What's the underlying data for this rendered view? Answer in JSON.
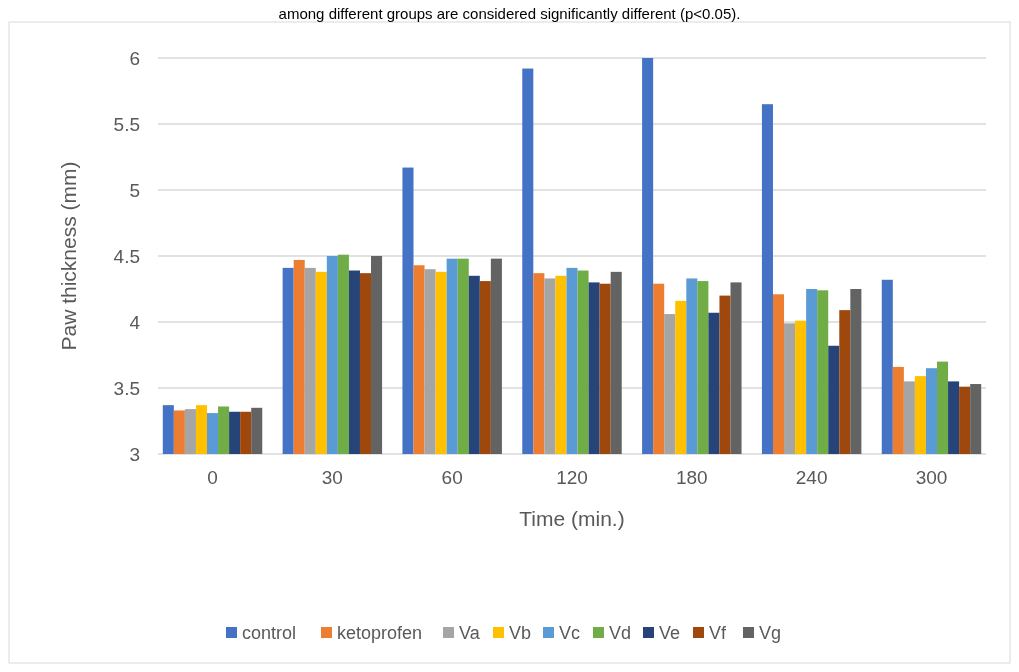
{
  "chart_data": {
    "type": "bar",
    "xlabel": "Time (min.)",
    "ylabel": "Paw thickness (mm)",
    "annotations": [
      "among different groups are considered significantly different (p<0.05)."
    ],
    "categories": [
      "0",
      "30",
      "60",
      "120",
      "180",
      "240",
      "300"
    ],
    "ylim": [
      3,
      6
    ],
    "yticks": [
      3,
      3.5,
      4,
      4.5,
      5,
      5.5,
      6
    ],
    "grid": "y",
    "legend": "bottom",
    "series": [
      {
        "name": "control",
        "color": "#4472c4",
        "values": [
          3.37,
          4.41,
          5.17,
          5.92,
          6.0,
          5.65,
          4.32
        ]
      },
      {
        "name": "ketoprofen",
        "color": "#ed7d31",
        "values": [
          3.33,
          4.47,
          4.43,
          4.37,
          4.29,
          4.21,
          3.66
        ]
      },
      {
        "name": "Va",
        "color": "#a5a5a5",
        "values": [
          3.34,
          4.41,
          4.4,
          4.33,
          4.06,
          3.99,
          3.55
        ]
      },
      {
        "name": "Vb",
        "color": "#ffc000",
        "values": [
          3.37,
          4.38,
          4.38,
          4.35,
          4.16,
          4.01,
          3.59
        ]
      },
      {
        "name": "Vc",
        "color": "#5b9bd5",
        "values": [
          3.31,
          4.5,
          4.48,
          4.41,
          4.33,
          4.25,
          3.65
        ]
      },
      {
        "name": "Vd",
        "color": "#70ad47",
        "values": [
          3.36,
          4.51,
          4.48,
          4.39,
          4.31,
          4.24,
          3.7
        ]
      },
      {
        "name": "Ve",
        "color": "#264478",
        "values": [
          3.32,
          4.39,
          4.35,
          4.3,
          4.07,
          3.82,
          3.55
        ]
      },
      {
        "name": "Vf",
        "color": "#9e480e",
        "values": [
          3.32,
          4.37,
          4.31,
          4.29,
          4.2,
          4.09,
          3.51
        ]
      },
      {
        "name": "Vg",
        "color": "#636363",
        "values": [
          3.35,
          4.5,
          4.48,
          4.38,
          4.3,
          4.25,
          3.53
        ]
      }
    ]
  }
}
